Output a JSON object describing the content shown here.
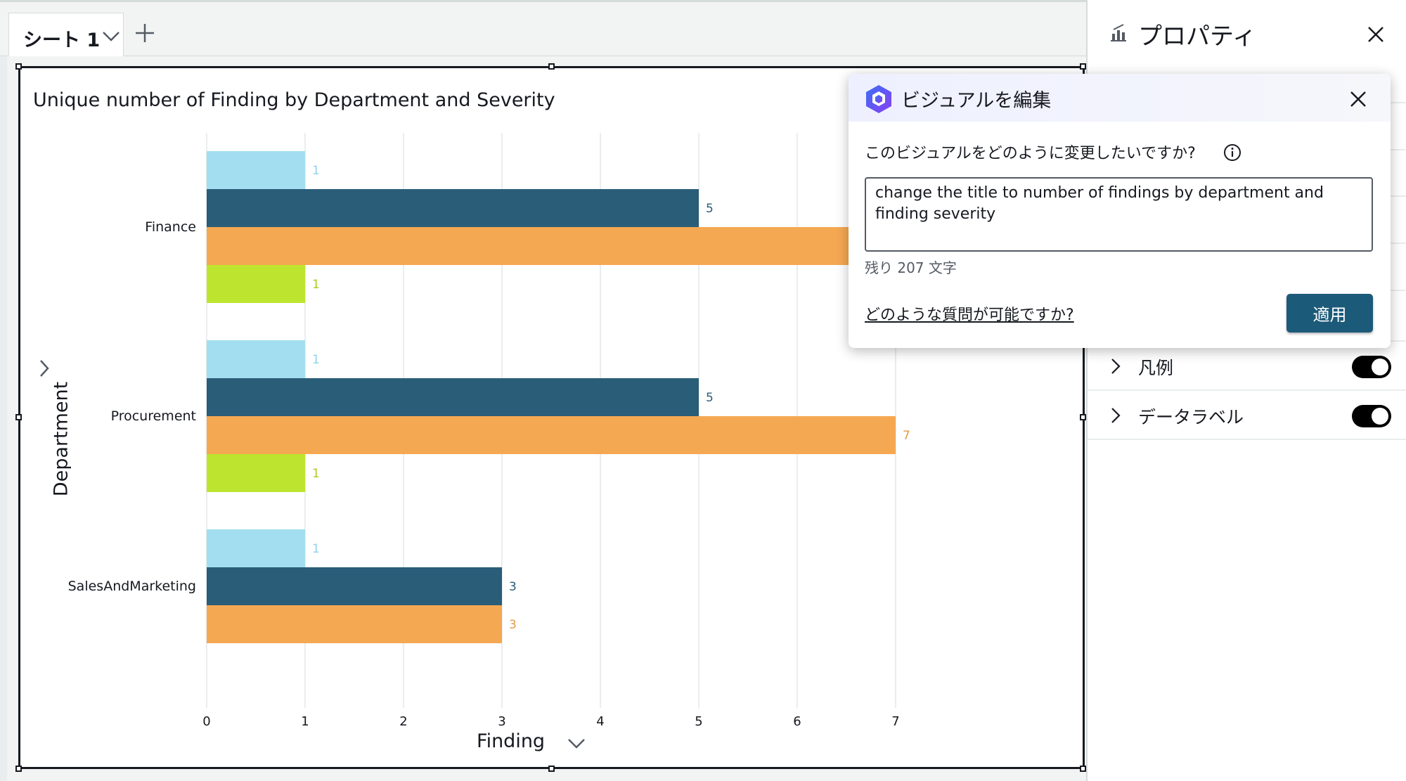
{
  "tabbar": {
    "sheet_tab_label": "シート 1",
    "add_sheet_icon": "plus-icon"
  },
  "visual": {
    "title": "Unique number of Finding by Department and Severity"
  },
  "chart_data": {
    "type": "bar",
    "orientation": "horizontal",
    "title": "Unique number of Finding by Department and Severity",
    "xlabel": "Finding",
    "ylabel": "Department",
    "categories": [
      "Finance",
      "Procurement",
      "SalesAndMarketing"
    ],
    "series": [
      {
        "color": "#a3def0",
        "values": [
          1,
          1,
          1
        ]
      },
      {
        "color": "#2a5d78",
        "values": [
          5,
          5,
          3
        ]
      },
      {
        "color": "#f5a852",
        "values": [
          7,
          7,
          3
        ]
      },
      {
        "color": "#bde52f",
        "values": [
          1,
          1,
          null
        ]
      }
    ],
    "xlim": [
      0,
      7
    ],
    "x_ticks": [
      0,
      1,
      2,
      3,
      4,
      5,
      6,
      7
    ],
    "data_labels": true,
    "grid": "vertical",
    "label_colors": [
      "#8fd4ea",
      "#2a5d78",
      "#e39a46",
      "#a8cc1e"
    ]
  },
  "properties": {
    "title": "プロパティ",
    "rows": [
      {
        "label": "凡例",
        "toggle_on": true
      },
      {
        "label": "データラベル",
        "toggle_on": true
      }
    ]
  },
  "popup": {
    "title": "ビジュアルを編集",
    "question": "このビジュアルをどのように変更したいですか?",
    "input_value": "change the title to number of findings by department and finding severity",
    "remaining": "残り 207 文字",
    "help_link": "どのような質問が可能ですか?",
    "apply_label": "適用"
  }
}
